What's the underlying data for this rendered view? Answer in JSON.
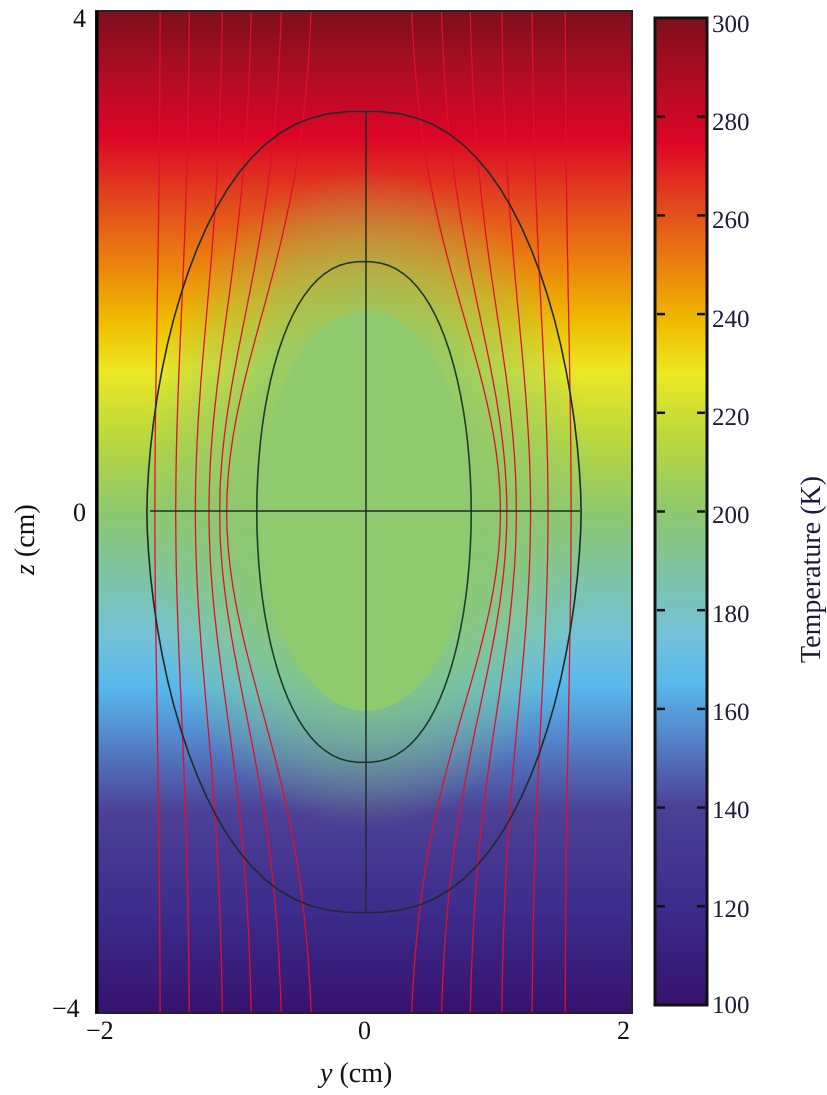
{
  "chart_data": {
    "type": "heatmap",
    "title": "",
    "xlabel_var": "y",
    "xlabel_unit": "(cm)",
    "ylabel_var": "z",
    "ylabel_unit": "(cm)",
    "colorbar_label": "Temperature (K)",
    "xlim": [
      -2,
      2
    ],
    "ylim": [
      -4,
      4
    ],
    "x_ticks": [
      {
        "value": -2,
        "label": "−2"
      },
      {
        "value": 0,
        "label": "0"
      },
      {
        "value": 2,
        "label": "2"
      }
    ],
    "y_ticks": [
      {
        "value": 4,
        "label": "4"
      },
      {
        "value": 0,
        "label": "0"
      },
      {
        "value": -4,
        "label": "−4"
      }
    ],
    "colorbar": {
      "range": [
        100,
        300
      ],
      "ticks": [
        "300",
        "280",
        "260",
        "240",
        "220",
        "200",
        "180",
        "160",
        "140",
        "120",
        "100"
      ],
      "colormap_stops": [
        {
          "value": 300,
          "color": "#7d0f1c"
        },
        {
          "value": 285,
          "color": "#b80c24"
        },
        {
          "value": 275,
          "color": "#dc0426"
        },
        {
          "value": 262,
          "color": "#e2481e"
        },
        {
          "value": 248,
          "color": "#ec8a0c"
        },
        {
          "value": 238,
          "color": "#f0bc00"
        },
        {
          "value": 228,
          "color": "#ece824"
        },
        {
          "value": 215,
          "color": "#bcd83c"
        },
        {
          "value": 200,
          "color": "#8ec86e"
        },
        {
          "value": 185,
          "color": "#7cc4b0"
        },
        {
          "value": 175,
          "color": "#74c2d8"
        },
        {
          "value": 165,
          "color": "#58b8ec"
        },
        {
          "value": 155,
          "color": "#5488cc"
        },
        {
          "value": 140,
          "color": "#4c4096"
        },
        {
          "value": 120,
          "color": "#3c2c8c"
        },
        {
          "value": 100,
          "color": "#36126e"
        }
      ]
    },
    "background_field": "temperature varies linearly with z from ~100 K at z=-4 to ~300 K at z=4; central droplet region held near 200 K",
    "inner_region": {
      "shape": "ellipse",
      "center": [
        0,
        0
      ],
      "semi_axis_y": 0.8,
      "semi_axis_z": 2.0,
      "temperature_K": 200
    },
    "outer_contour": {
      "shape": "rounded ellipse",
      "center": [
        0,
        0
      ],
      "semi_axis_y": 1.62,
      "semi_axis_z": 4.0,
      "z_top": 3.2,
      "z_bottom": -4.0
    },
    "streamlines_y_far": [
      -1.52,
      -1.3,
      -1.05,
      -0.83,
      -0.6,
      -0.37,
      0.33,
      0.56,
      0.78,
      1.02,
      1.25,
      1.5
    ],
    "axis_lines": [
      {
        "orientation": "vertical",
        "y": 0,
        "z_from": -4.0,
        "z_to": 4.0
      },
      {
        "orientation": "horizontal",
        "z": 0,
        "y_from": -1.62,
        "y_to": 1.62
      }
    ]
  }
}
